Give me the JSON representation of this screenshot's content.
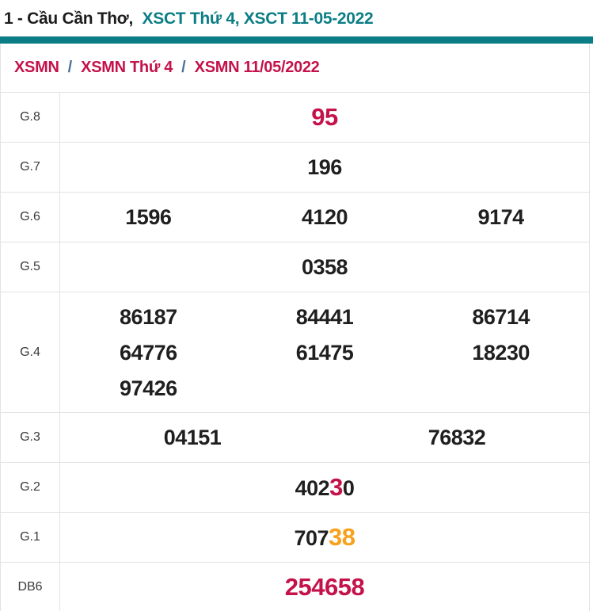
{
  "colors": {
    "teal": "#0b7e85",
    "crimson": "#c4124b",
    "orange": "#f8a11d",
    "sep": "#4a7298"
  },
  "header": {
    "title_prefix": "1 - Cầu Cần Thơ,",
    "title_accent": "XSCT Thứ 4, XSCT 11-05-2022"
  },
  "breadcrumb": {
    "separator": "/",
    "items": [
      "XSMN",
      "XSMN Thứ 4",
      "XSMN 11/05/2022"
    ]
  },
  "table": {
    "rows": [
      {
        "label": "G.8",
        "cols": 1,
        "cells": [
          [
            {
              "t": "95",
              "c": "crimson",
              "xl": true
            }
          ]
        ]
      },
      {
        "label": "G.7",
        "cols": 1,
        "cells": [
          [
            {
              "t": "196"
            }
          ]
        ]
      },
      {
        "label": "G.6",
        "cols": 3,
        "cells": [
          [
            {
              "t": "1596"
            }
          ],
          [
            {
              "t": "4120"
            }
          ],
          [
            {
              "t": "9174"
            }
          ]
        ]
      },
      {
        "label": "G.5",
        "cols": 1,
        "cells": [
          [
            {
              "t": "0358"
            }
          ]
        ]
      },
      {
        "label": "G.4",
        "cols": 3,
        "tall": true,
        "cells": [
          [
            {
              "t": "86187"
            }
          ],
          [
            {
              "t": "84441"
            }
          ],
          [
            {
              "t": "86714"
            }
          ],
          [
            {
              "t": "64776"
            }
          ],
          [
            {
              "t": "61475"
            }
          ],
          [
            {
              "t": "18230"
            }
          ],
          [
            {
              "t": "97426"
            }
          ]
        ]
      },
      {
        "label": "G.3",
        "cols": 2,
        "cells": [
          [
            {
              "t": "04151"
            }
          ],
          [
            {
              "t": "76832"
            }
          ]
        ]
      },
      {
        "label": "G.2",
        "cols": 1,
        "cells": [
          [
            {
              "t": "402"
            },
            {
              "t": "3",
              "c": "crimson",
              "xl": true
            },
            {
              "t": "0"
            }
          ]
        ]
      },
      {
        "label": "G.1",
        "cols": 1,
        "cells": [
          [
            {
              "t": "707"
            },
            {
              "t": "38",
              "c": "orange",
              "xl": true
            }
          ]
        ]
      },
      {
        "label": "DB6",
        "cols": 1,
        "cells": [
          [
            {
              "t": "254658",
              "c": "crimson",
              "xl": true
            }
          ]
        ]
      }
    ]
  }
}
